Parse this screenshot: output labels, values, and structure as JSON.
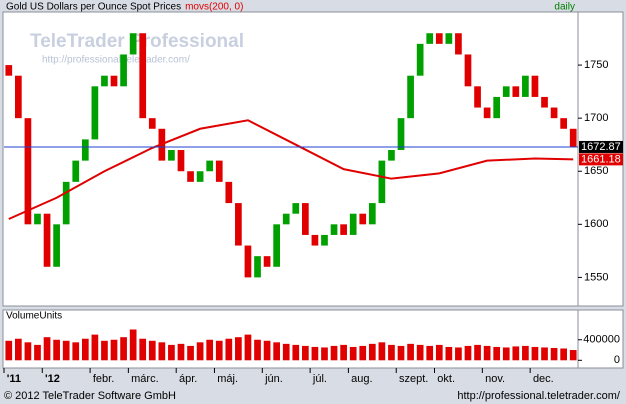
{
  "chart_data": {
    "type": "candlestick",
    "title": "Gold US Dollars per Ounce Spot Prices",
    "interval": "daily",
    "watermark_title": "TeleTrader Professional",
    "watermark_url": "http://professional.teletrader.com/",
    "categories": [
      "'11",
      null,
      null,
      null,
      "'12",
      null,
      null,
      null,
      null,
      "febr.",
      null,
      null,
      null,
      "márc.",
      null,
      null,
      null,
      null,
      "ápr.",
      null,
      null,
      null,
      "máj.",
      null,
      null,
      null,
      null,
      "jún.",
      null,
      null,
      null,
      null,
      "júl.",
      null,
      null,
      null,
      "aug.",
      null,
      null,
      null,
      null,
      "szept.",
      null,
      null,
      null,
      "okt.",
      null,
      null,
      null,
      null,
      "nov.",
      null,
      null,
      null,
      null,
      "dec.",
      null,
      null,
      null,
      null
    ],
    "open": [
      1750,
      1740,
      1700,
      1600,
      1610,
      1560,
      1600,
      1640,
      1660,
      1680,
      1730,
      1740,
      1730,
      1760,
      1780,
      1700,
      1690,
      1660,
      1670,
      1650,
      1640,
      1650,
      1660,
      1640,
      1620,
      1580,
      1550,
      1570,
      1560,
      1600,
      1610,
      1620,
      1590,
      1580,
      1590,
      1600,
      1590,
      1610,
      1600,
      1620,
      1660,
      1670,
      1700,
      1740,
      1770,
      1780,
      1770,
      1780,
      1760,
      1730,
      1710,
      1700,
      1720,
      1730,
      1720,
      1740,
      1720,
      1710,
      1700,
      1690
    ],
    "close": [
      1740,
      1700,
      1600,
      1610,
      1560,
      1600,
      1640,
      1660,
      1680,
      1730,
      1740,
      1730,
      1760,
      1780,
      1700,
      1690,
      1660,
      1670,
      1650,
      1640,
      1650,
      1660,
      1640,
      1620,
      1580,
      1550,
      1570,
      1560,
      1600,
      1610,
      1620,
      1590,
      1580,
      1590,
      1600,
      1590,
      1610,
      1600,
      1620,
      1660,
      1670,
      1700,
      1740,
      1770,
      1780,
      1770,
      1780,
      1760,
      1730,
      1710,
      1700,
      1720,
      1730,
      1720,
      1740,
      1720,
      1710,
      1700,
      1690,
      1672.87
    ],
    "up_color": "#00a000",
    "down_color": "#e00000",
    "last_line_color": "#2040d0",
    "ylim": [
      1524,
      1800
    ],
    "yticks": [
      1550,
      1600,
      1650,
      1700,
      1750
    ],
    "ma": {
      "name": "movs(200, 0)",
      "color": "#e00000",
      "x": [
        0,
        5,
        10,
        15,
        20,
        25,
        30,
        35,
        40,
        45,
        50,
        55,
        59
      ],
      "values": [
        1605,
        1625,
        1650,
        1672,
        1690,
        1698,
        1675,
        1652,
        1643,
        1648,
        1660,
        1662,
        1661.18
      ]
    },
    "volume": {
      "title": "VolumeUnits",
      "color": "#e00000",
      "ylim": [
        -150000,
        960000
      ],
      "yticks": [
        0,
        400000
      ],
      "values": [
        380000,
        420000,
        350000,
        300000,
        450000,
        400000,
        380000,
        350000,
        420000,
        500000,
        380000,
        400000,
        450000,
        600000,
        420000,
        380000,
        350000,
        300000,
        320000,
        280000,
        350000,
        400000,
        380000,
        420000,
        450000,
        500000,
        400000,
        380000,
        350000,
        320000,
        300000,
        280000,
        260000,
        250000,
        280000,
        300000,
        260000,
        280000,
        320000,
        350000,
        300000,
        280000,
        320000,
        300000,
        280000,
        300000,
        260000,
        250000,
        280000,
        300000,
        280000,
        260000,
        250000,
        270000,
        280000,
        260000,
        250000,
        240000,
        230000,
        200000
      ]
    },
    "footer_left": "© 2012 TeleTrader Software GmbH",
    "footer_right": "http://professional.teletrader.com/"
  }
}
